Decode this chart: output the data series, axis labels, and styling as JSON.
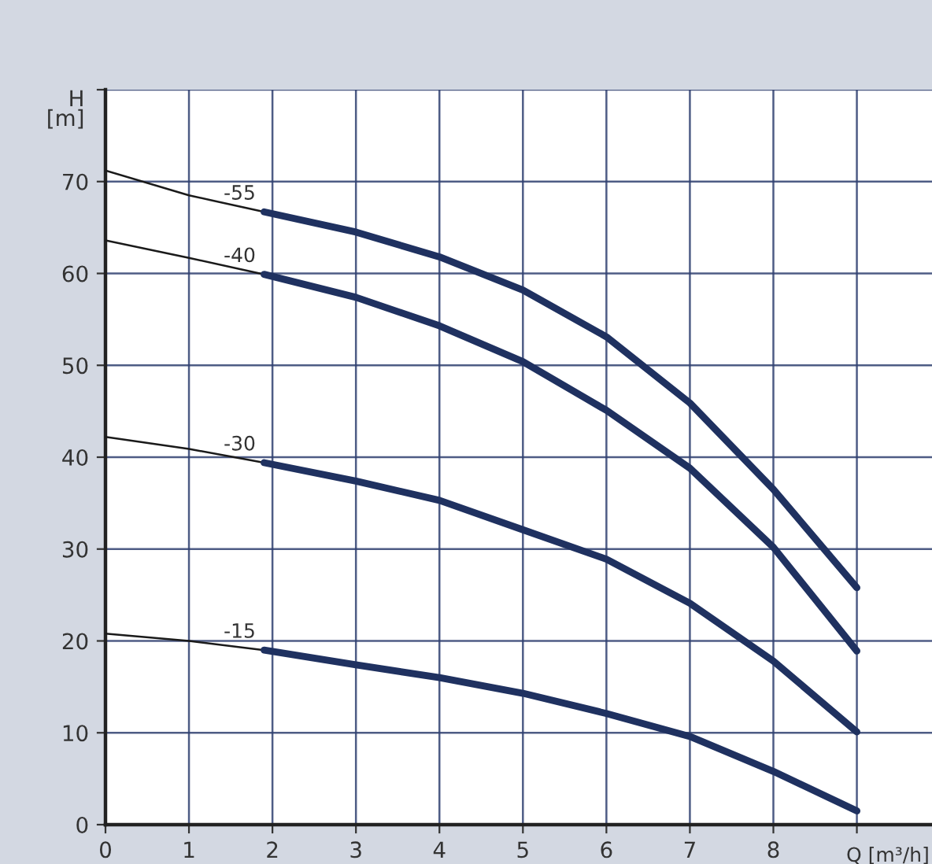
{
  "chart_data": {
    "type": "line",
    "xlabel": "Q [m³/h]",
    "ylabel": "H\n[m]",
    "xlim": [
      0,
      9.9
    ],
    "xticks": [
      0,
      1,
      2,
      3,
      4,
      5,
      6,
      7,
      8,
      {
        "value": 9,
        "label": null
      }
    ],
    "ylim": [
      0,
      80
    ],
    "yticks": [
      0,
      10,
      20,
      30,
      40,
      50,
      60,
      70,
      {
        "value": 80,
        "label": null
      }
    ],
    "grid": true,
    "legend": false,
    "marker": "none",
    "line_style": "solid",
    "series": [
      {
        "color": "#1a1a1a",
        "x": [
          0,
          1,
          1.9
        ],
        "values": [
          71.2,
          68.5,
          66.7
        ]
      },
      {
        "name": "-55",
        "color": "#1f3160",
        "x": [
          1.9,
          3,
          4,
          5,
          6,
          7,
          8,
          9
        ],
        "values": [
          66.7,
          64.5,
          61.8,
          58.2,
          53.1,
          45.9,
          36.5,
          25.8
        ]
      },
      {
        "color": "#1a1a1a",
        "x": [
          0,
          1,
          1.9
        ],
        "values": [
          63.6,
          61.7,
          59.9
        ]
      },
      {
        "name": "-40",
        "color": "#1f3160",
        "x": [
          1.9,
          3,
          4,
          5,
          6,
          7,
          8,
          9
        ],
        "values": [
          59.9,
          57.4,
          54.3,
          50.4,
          45.1,
          38.8,
          30.2,
          18.9
        ]
      },
      {
        "color": "#1a1a1a",
        "x": [
          0,
          1,
          1.9
        ],
        "values": [
          42.2,
          40.9,
          39.4
        ]
      },
      {
        "name": "-30",
        "color": "#1f3160",
        "x": [
          1.9,
          3,
          4,
          5,
          6,
          7,
          8,
          9
        ],
        "values": [
          39.4,
          37.4,
          35.3,
          32.1,
          28.9,
          24.1,
          17.8,
          10.1
        ]
      },
      {
        "color": "#1a1a1a",
        "x": [
          0,
          1,
          1.9
        ],
        "values": [
          20.8,
          20.0,
          19.0
        ]
      },
      {
        "name": "-15",
        "color": "#1f3160",
        "x": [
          1.9,
          3,
          4,
          5,
          6,
          7,
          8,
          9
        ],
        "values": [
          19.0,
          17.4,
          16.0,
          14.3,
          12.1,
          9.6,
          5.8,
          1.5
        ]
      }
    ]
  }
}
